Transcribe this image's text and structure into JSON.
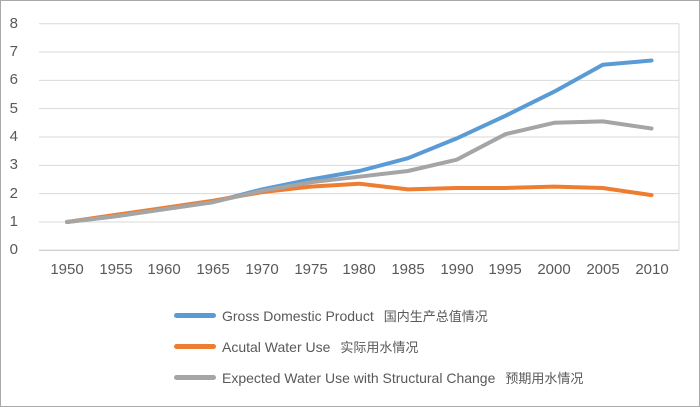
{
  "chart_data": {
    "type": "line",
    "title": "",
    "xlabel": "",
    "ylabel": "",
    "ylim": [
      0,
      8
    ],
    "yticks": [
      8,
      7,
      6,
      5,
      4,
      3,
      2,
      1,
      0
    ],
    "grid": "horizontal",
    "legend_position": "bottom-left",
    "x": [
      1950,
      1955,
      1960,
      1965,
      1970,
      1975,
      1980,
      1985,
      1990,
      1995,
      2000,
      2005,
      2010
    ],
    "series": [
      {
        "name": "Gross Domestic Product",
        "name_zh": "国内生产总值情况",
        "color": "#5B9BD5",
        "values": [
          1.0,
          1.2,
          1.45,
          1.7,
          2.15,
          2.5,
          2.8,
          3.25,
          3.95,
          4.75,
          5.6,
          6.55,
          6.7
        ]
      },
      {
        "name": "Acutal Water Use",
        "name_zh": "实际用水情况",
        "color": "#ED7D31",
        "values": [
          1.0,
          1.25,
          1.5,
          1.75,
          2.05,
          2.25,
          2.35,
          2.15,
          2.2,
          2.2,
          2.25,
          2.2,
          1.95
        ]
      },
      {
        "name": "Expected Water Use with Structural Change",
        "name_zh": "预期用水情况",
        "color": "#A5A5A5",
        "values": [
          1.0,
          1.2,
          1.45,
          1.7,
          2.1,
          2.4,
          2.6,
          2.8,
          3.2,
          4.1,
          4.5,
          4.55,
          4.3
        ]
      }
    ]
  },
  "axes": {
    "y_labels": [
      "8",
      "7",
      "6",
      "5",
      "4",
      "3",
      "2",
      "1",
      "0"
    ],
    "x_labels": [
      "1950",
      "1955",
      "1960",
      "1965",
      "1970",
      "1975",
      "1980",
      "1985",
      "1990",
      "1995",
      "2000",
      "2005",
      "2010"
    ]
  },
  "colors": {
    "gridline": "#D9D9D9",
    "axis_line": "#BFBFBF",
    "plot_right_border": "#D9D9D9",
    "tick_text": "#595959",
    "legend_text": "#595959",
    "background": "#FFFFFF",
    "frame_border": "#A9A9A9"
  }
}
